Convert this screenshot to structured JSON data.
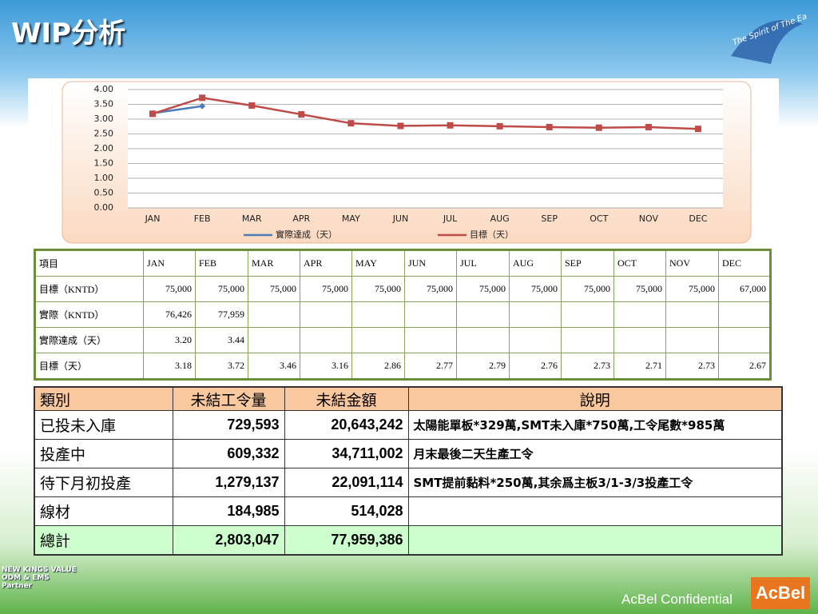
{
  "title": "WIP分析",
  "badge": "The Spirit of The Eagle",
  "chart_data": {
    "type": "line",
    "categories": [
      "JAN",
      "FEB",
      "MAR",
      "APR",
      "MAY",
      "JUN",
      "JUL",
      "AUG",
      "SEP",
      "OCT",
      "NOV",
      "DEC"
    ],
    "series": [
      {
        "name": "實際達成（天）",
        "color": "#4a7ebb",
        "values": [
          3.2,
          3.44,
          null,
          null,
          null,
          null,
          null,
          null,
          null,
          null,
          null,
          null
        ]
      },
      {
        "name": "目標（天）",
        "color": "#be4b48",
        "values": [
          3.18,
          3.72,
          3.46,
          3.16,
          2.86,
          2.77,
          2.79,
          2.76,
          2.73,
          2.71,
          2.73,
          2.67
        ]
      }
    ],
    "ylim": [
      0,
      4
    ],
    "yticks": [
      {
        "value": 0,
        "label": "0.00"
      },
      {
        "value": 0.5,
        "label": "0.50"
      },
      {
        "value": 1,
        "label": "1.00"
      },
      {
        "value": 1.5,
        "label": "1.50"
      },
      {
        "value": 2,
        "label": "2.00"
      },
      {
        "value": 2.5,
        "label": "2.50"
      },
      {
        "value": 3,
        "label": "3.00"
      },
      {
        "value": 3.5,
        "label": "3.50"
      },
      {
        "value": 4,
        "label": "4.00"
      }
    ],
    "grid": true,
    "legend": "bottom"
  },
  "table1": {
    "header": [
      "項目",
      "JAN",
      "FEB",
      "MAR",
      "APR",
      "MAY",
      "JUN",
      "JUL",
      "AUG",
      "SEP",
      "OCT",
      "NOV",
      "DEC"
    ],
    "rows": [
      [
        "目標（KNTD）",
        "75,000",
        "75,000",
        "75,000",
        "75,000",
        "75,000",
        "75,000",
        "75,000",
        "75,000",
        "75,000",
        "75,000",
        "75,000",
        "67,000"
      ],
      [
        "實際（KNTD）",
        "76,426",
        "77,959"
      ],
      [
        "實際達成（天）",
        "3.20",
        "3.44"
      ],
      [
        "目標（天）",
        "3.18",
        "3.72",
        "3.46",
        "3.16",
        "2.86",
        "2.77",
        "2.79",
        "2.76",
        "2.73",
        "2.71",
        "2.73",
        "2.67"
      ]
    ]
  },
  "table2": {
    "header": [
      "類別",
      "未結工令量",
      "未結金額",
      "說明"
    ],
    "rows": [
      [
        "已投未入庫",
        "729,593",
        "20,643,242",
        "太陽能單板*329萬,SMT未入庫*750萬,工令尾數*985萬"
      ],
      [
        "投產中",
        "609,332",
        "34,711,002",
        "月末最後二天生產工令"
      ],
      [
        "待下月初投產",
        "1,279,137",
        "22,091,114",
        "SMT提前黏料*250萬,其余爲主板3/1-3/3投產工令"
      ],
      [
        "線材",
        "184,985",
        "514,028"
      ],
      [
        "總計",
        "2,803,047",
        "77,959,386"
      ]
    ]
  },
  "footer": {
    "confidential": "AcBel Confidential",
    "logo": "AcBel",
    "partner": "NEW KINGS VALUE",
    "partner_sub": "ODM & EMS Partner"
  }
}
